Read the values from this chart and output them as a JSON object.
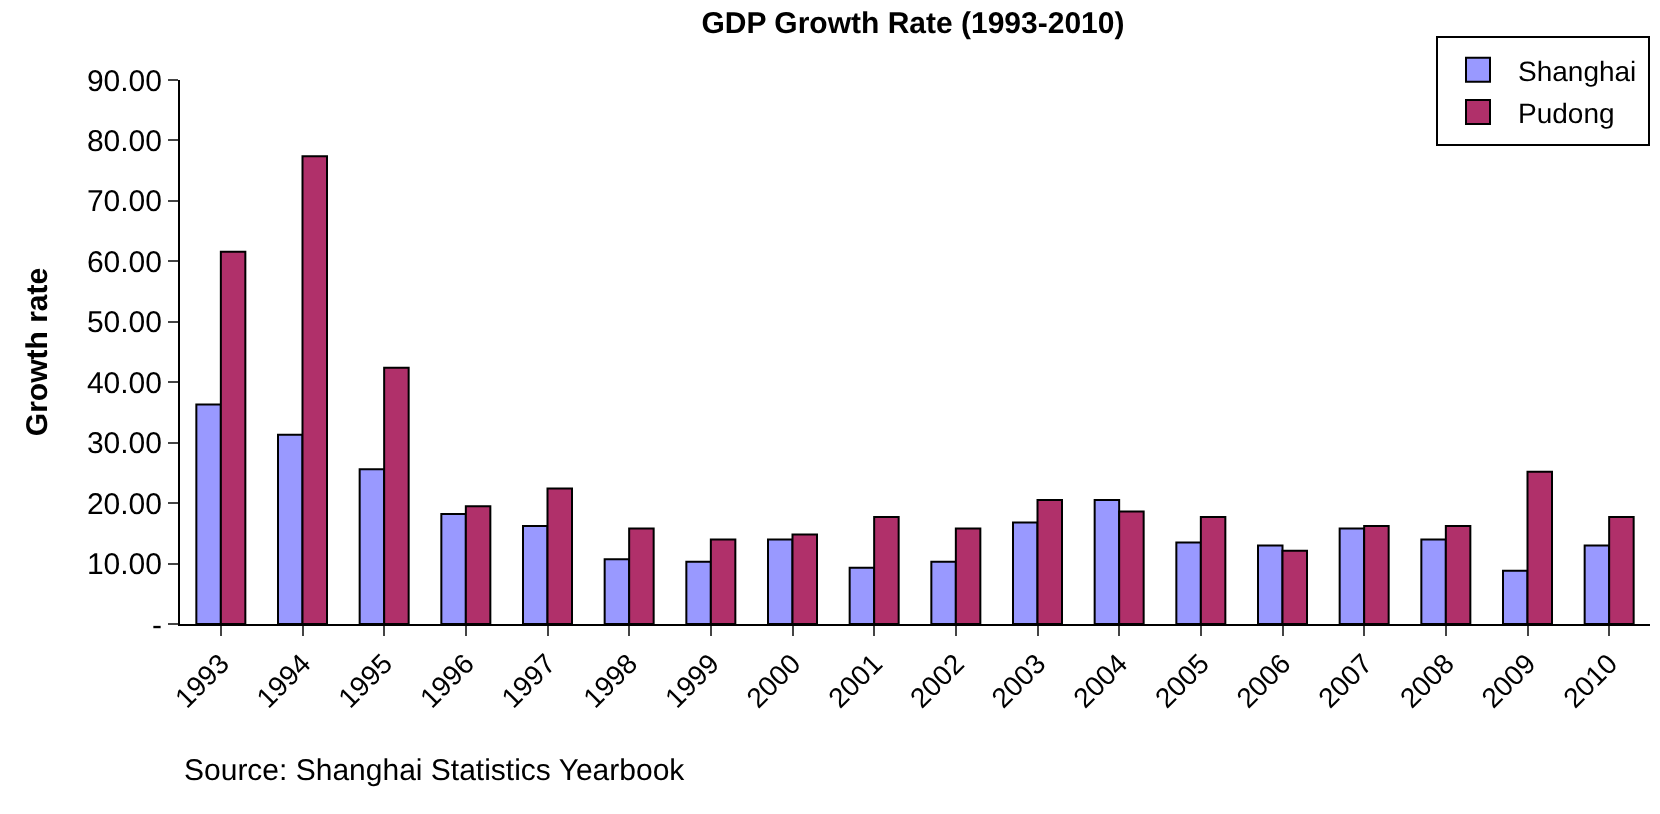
{
  "chart_data": {
    "type": "bar",
    "title": "GDP Growth Rate (1993-2010)",
    "ylabel": "Growth rate",
    "categories": [
      "1993",
      "1994",
      "1995",
      "1996",
      "1997",
      "1998",
      "1999",
      "2000",
      "2001",
      "2002",
      "2003",
      "2004",
      "2005",
      "2006",
      "2007",
      "2008",
      "2009",
      "2010"
    ],
    "series": [
      {
        "name": "Shanghai",
        "color": "#9999ff",
        "values": [
          36.3,
          31.3,
          25.6,
          18.2,
          16.2,
          10.7,
          10.3,
          14.0,
          9.3,
          10.3,
          16.8,
          20.5,
          13.5,
          13.0,
          15.8,
          14.0,
          8.8,
          13.0
        ]
      },
      {
        "name": "Pudong",
        "color": "#b0306a",
        "values": [
          61.6,
          77.4,
          42.4,
          19.5,
          22.4,
          15.8,
          14.0,
          14.8,
          17.7,
          15.8,
          20.5,
          18.6,
          17.7,
          12.1,
          16.2,
          16.2,
          25.2,
          17.7
        ]
      }
    ],
    "ylim": [
      0,
      90
    ],
    "yticks": [
      {
        "value": 0,
        "label": "-"
      },
      {
        "value": 10,
        "label": "10.00"
      },
      {
        "value": 20,
        "label": "20.00"
      },
      {
        "value": 30,
        "label": "30.00"
      },
      {
        "value": 40,
        "label": "40.00"
      },
      {
        "value": 50,
        "label": "50.00"
      },
      {
        "value": 60,
        "label": "60.00"
      },
      {
        "value": 70,
        "label": "70.00"
      },
      {
        "value": 80,
        "label": "80.00"
      },
      {
        "value": 90,
        "label": "90.00"
      }
    ],
    "legend": "top right",
    "annotations": [
      "Source: Shanghai Statistics Yearbook"
    ]
  }
}
